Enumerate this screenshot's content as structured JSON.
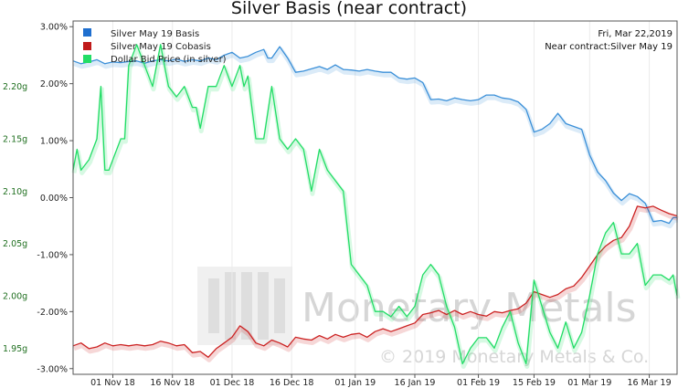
{
  "chart_data": {
    "type": "line",
    "title": "Silver Basis (near contract)",
    "date_note": "Fri, Mar 22,2019",
    "contract_note": "Near contract:Silver May 19",
    "watermark": {
      "brand": "Monetary Metals",
      "copyright": "© 2019 Monetary Metals & Co."
    },
    "x_ticks": [
      "01 Nov 18",
      "16 Nov 18",
      "01 Dec 18",
      "16 Dec 18",
      "01 Jan 19",
      "16 Jan 19",
      "01 Feb 19",
      "15 Feb 19",
      "01 Mar 19",
      "16 Mar 19"
    ],
    "x_tick_days": [
      10,
      25,
      40,
      55,
      71,
      86,
      102,
      116,
      130,
      145
    ],
    "x_range": [
      0,
      152
    ],
    "y_left": {
      "ticks": [
        "3.00%",
        "2.00%",
        "1.00%",
        "0.00%",
        "-1.00%",
        "-2.00%",
        "-3.00%"
      ],
      "tick_values": [
        3,
        2,
        1,
        0,
        -1,
        -2,
        -3
      ],
      "range": [
        -3.1,
        3.1
      ]
    },
    "y_right": {
      "ticks": [
        "2.20g",
        "2.15g",
        "2.10g",
        "2.05g",
        "2.00g",
        "1.95g"
      ],
      "tick_values": [
        2.2,
        2.15,
        2.1,
        2.05,
        2.0,
        1.95
      ],
      "range": [
        1.925,
        2.2625
      ]
    },
    "series": [
      {
        "name": "Silver May 19 Basis",
        "color": "#3a8fd8",
        "axis": "left",
        "points": [
          [
            0,
            2.4
          ],
          [
            2,
            2.35
          ],
          [
            4,
            2.38
          ],
          [
            6,
            2.42
          ],
          [
            8,
            2.35
          ],
          [
            10,
            2.38
          ],
          [
            12,
            2.37
          ],
          [
            14,
            2.39
          ],
          [
            16,
            2.4
          ],
          [
            18,
            2.36
          ],
          [
            20,
            2.4
          ],
          [
            22,
            2.42
          ],
          [
            24,
            2.4
          ],
          [
            26,
            2.43
          ],
          [
            28,
            2.39
          ],
          [
            30,
            2.42
          ],
          [
            32,
            2.4
          ],
          [
            34,
            2.45
          ],
          [
            36,
            2.42
          ],
          [
            38,
            2.5
          ],
          [
            40,
            2.55
          ],
          [
            42,
            2.45
          ],
          [
            44,
            2.48
          ],
          [
            46,
            2.55
          ],
          [
            48,
            2.6
          ],
          [
            49,
            2.45
          ],
          [
            50,
            2.45
          ],
          [
            52,
            2.65
          ],
          [
            54,
            2.45
          ],
          [
            56,
            2.2
          ],
          [
            58,
            2.22
          ],
          [
            60,
            2.26
          ],
          [
            62,
            2.3
          ],
          [
            64,
            2.25
          ],
          [
            66,
            2.33
          ],
          [
            68,
            2.25
          ],
          [
            70,
            2.24
          ],
          [
            72,
            2.22
          ],
          [
            74,
            2.25
          ],
          [
            76,
            2.22
          ],
          [
            78,
            2.2
          ],
          [
            80,
            2.2
          ],
          [
            82,
            2.1
          ],
          [
            84,
            2.08
          ],
          [
            86,
            2.1
          ],
          [
            88,
            2.02
          ],
          [
            90,
            1.72
          ],
          [
            92,
            1.73
          ],
          [
            94,
            1.7
          ],
          [
            96,
            1.75
          ],
          [
            98,
            1.72
          ],
          [
            100,
            1.7
          ],
          [
            102,
            1.72
          ],
          [
            104,
            1.8
          ],
          [
            106,
            1.8
          ],
          [
            108,
            1.75
          ],
          [
            110,
            1.73
          ],
          [
            112,
            1.68
          ],
          [
            114,
            1.55
          ],
          [
            116,
            1.15
          ],
          [
            118,
            1.2
          ],
          [
            120,
            1.3
          ],
          [
            122,
            1.48
          ],
          [
            124,
            1.3
          ],
          [
            126,
            1.25
          ],
          [
            128,
            1.2
          ],
          [
            130,
            0.75
          ],
          [
            132,
            0.45
          ],
          [
            134,
            0.3
          ],
          [
            136,
            0.08
          ],
          [
            138,
            -0.05
          ],
          [
            140,
            0.07
          ],
          [
            142,
            0.02
          ],
          [
            144,
            -0.1
          ],
          [
            146,
            -0.42
          ],
          [
            148,
            -0.4
          ],
          [
            150,
            -0.45
          ],
          [
            151,
            -0.35
          ],
          [
            152,
            -0.35
          ]
        ]
      },
      {
        "name": "Silver May 19 Cobasis",
        "color": "#cc2222",
        "axis": "left",
        "points": [
          [
            0,
            -2.6
          ],
          [
            2,
            -2.55
          ],
          [
            4,
            -2.65
          ],
          [
            6,
            -2.62
          ],
          [
            8,
            -2.55
          ],
          [
            10,
            -2.6
          ],
          [
            12,
            -2.58
          ],
          [
            14,
            -2.6
          ],
          [
            16,
            -2.58
          ],
          [
            18,
            -2.6
          ],
          [
            20,
            -2.58
          ],
          [
            22,
            -2.52
          ],
          [
            24,
            -2.55
          ],
          [
            26,
            -2.6
          ],
          [
            28,
            -2.58
          ],
          [
            30,
            -2.72
          ],
          [
            32,
            -2.7
          ],
          [
            34,
            -2.8
          ],
          [
            36,
            -2.65
          ],
          [
            38,
            -2.55
          ],
          [
            40,
            -2.45
          ],
          [
            42,
            -2.25
          ],
          [
            44,
            -2.35
          ],
          [
            46,
            -2.55
          ],
          [
            48,
            -2.6
          ],
          [
            50,
            -2.5
          ],
          [
            52,
            -2.55
          ],
          [
            54,
            -2.62
          ],
          [
            56,
            -2.45
          ],
          [
            58,
            -2.48
          ],
          [
            60,
            -2.5
          ],
          [
            62,
            -2.42
          ],
          [
            64,
            -2.48
          ],
          [
            66,
            -2.4
          ],
          [
            68,
            -2.45
          ],
          [
            70,
            -2.4
          ],
          [
            72,
            -2.38
          ],
          [
            74,
            -2.45
          ],
          [
            76,
            -2.35
          ],
          [
            78,
            -2.3
          ],
          [
            80,
            -2.35
          ],
          [
            82,
            -2.3
          ],
          [
            84,
            -2.25
          ],
          [
            86,
            -2.2
          ],
          [
            88,
            -2.05
          ],
          [
            90,
            -2.02
          ],
          [
            92,
            -1.98
          ],
          [
            94,
            -2.05
          ],
          [
            96,
            -1.98
          ],
          [
            98,
            -2.05
          ],
          [
            100,
            -2.0
          ],
          [
            102,
            -2.05
          ],
          [
            104,
            -2.08
          ],
          [
            106,
            -2.0
          ],
          [
            108,
            -2.02
          ],
          [
            110,
            -1.98
          ],
          [
            112,
            -1.95
          ],
          [
            114,
            -1.85
          ],
          [
            116,
            -1.65
          ],
          [
            118,
            -1.7
          ],
          [
            120,
            -1.75
          ],
          [
            122,
            -1.7
          ],
          [
            124,
            -1.6
          ],
          [
            126,
            -1.55
          ],
          [
            128,
            -1.4
          ],
          [
            130,
            -1.2
          ],
          [
            132,
            -1.0
          ],
          [
            134,
            -0.85
          ],
          [
            136,
            -0.75
          ],
          [
            138,
            -0.7
          ],
          [
            140,
            -0.5
          ],
          [
            142,
            -0.15
          ],
          [
            144,
            -0.18
          ],
          [
            146,
            -0.15
          ],
          [
            148,
            -0.22
          ],
          [
            150,
            -0.28
          ],
          [
            152,
            -0.32
          ]
        ]
      },
      {
        "name": "Dollar Bid Price (in silver)",
        "color": "#22dd66",
        "axis": "right",
        "points": [
          [
            0,
            2.12
          ],
          [
            1,
            2.14
          ],
          [
            2,
            2.12
          ],
          [
            4,
            2.13
          ],
          [
            6,
            2.15
          ],
          [
            7,
            2.2
          ],
          [
            8,
            2.12
          ],
          [
            9,
            2.12
          ],
          [
            10,
            2.13
          ],
          [
            12,
            2.15
          ],
          [
            13,
            2.15
          ],
          [
            14,
            2.22
          ],
          [
            16,
            2.24
          ],
          [
            18,
            2.22
          ],
          [
            20,
            2.2
          ],
          [
            22,
            2.24
          ],
          [
            24,
            2.2
          ],
          [
            26,
            2.19
          ],
          [
            28,
            2.2
          ],
          [
            30,
            2.18
          ],
          [
            31,
            2.18
          ],
          [
            32,
            2.16
          ],
          [
            34,
            2.2
          ],
          [
            36,
            2.2
          ],
          [
            38,
            2.22
          ],
          [
            40,
            2.2
          ],
          [
            42,
            2.22
          ],
          [
            43,
            2.2
          ],
          [
            44,
            2.21
          ],
          [
            46,
            2.15
          ],
          [
            48,
            2.15
          ],
          [
            50,
            2.2
          ],
          [
            52,
            2.15
          ],
          [
            54,
            2.14
          ],
          [
            56,
            2.15
          ],
          [
            58,
            2.14
          ],
          [
            60,
            2.1
          ],
          [
            62,
            2.14
          ],
          [
            64,
            2.12
          ],
          [
            66,
            2.11
          ],
          [
            68,
            2.1
          ],
          [
            70,
            2.03
          ],
          [
            72,
            2.02
          ],
          [
            74,
            2.01
          ],
          [
            76,
            1.985
          ],
          [
            78,
            1.985
          ],
          [
            80,
            1.98
          ],
          [
            82,
            1.99
          ],
          [
            84,
            1.98
          ],
          [
            86,
            1.99
          ],
          [
            88,
            2.02
          ],
          [
            90,
            2.03
          ],
          [
            92,
            2.02
          ],
          [
            94,
            1.99
          ],
          [
            96,
            1.97
          ],
          [
            98,
            1.935
          ],
          [
            100,
            1.95
          ],
          [
            102,
            1.96
          ],
          [
            104,
            1.96
          ],
          [
            106,
            1.95
          ],
          [
            108,
            1.97
          ],
          [
            110,
            1.985
          ],
          [
            112,
            1.955
          ],
          [
            114,
            1.935
          ],
          [
            116,
            2.015
          ],
          [
            118,
            1.99
          ],
          [
            120,
            1.965
          ],
          [
            122,
            1.95
          ],
          [
            124,
            1.975
          ],
          [
            126,
            1.95
          ],
          [
            128,
            1.965
          ],
          [
            130,
            2.0
          ],
          [
            132,
            2.04
          ],
          [
            134,
            2.06
          ],
          [
            136,
            2.07
          ],
          [
            138,
            2.04
          ],
          [
            140,
            2.04
          ],
          [
            142,
            2.05
          ],
          [
            144,
            2.01
          ],
          [
            146,
            2.02
          ],
          [
            148,
            2.02
          ],
          [
            150,
            2.015
          ],
          [
            151,
            2.02
          ],
          [
            152,
            2.0
          ]
        ]
      }
    ]
  }
}
